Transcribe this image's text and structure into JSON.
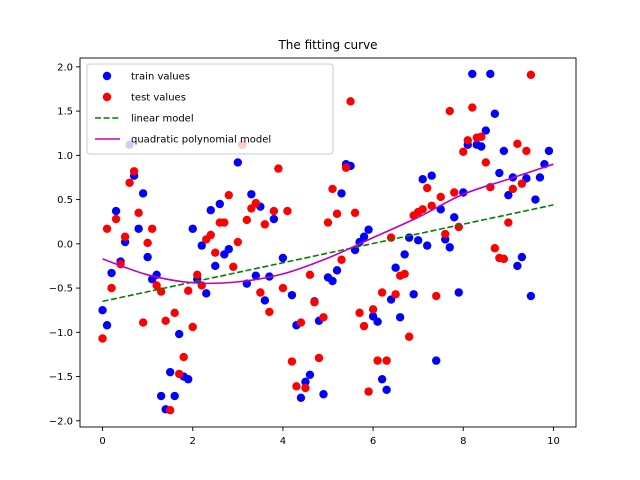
{
  "chart_data": {
    "type": "scatter",
    "title": "The fitting curve",
    "xlabel": "",
    "ylabel": "",
    "xlim": [
      -0.5,
      10.5
    ],
    "ylim": [
      -2.07,
      2.1
    ],
    "xticks": [
      0,
      2,
      4,
      6,
      8,
      10
    ],
    "yticks": [
      -2.0,
      -1.5,
      -1.0,
      -0.5,
      0.0,
      0.5,
      1.0,
      1.5,
      2.0
    ],
    "ytick_labels": [
      "−2.0",
      "−1.5",
      "−1.0",
      "−0.5",
      "0.0",
      "0.5",
      "1.0",
      "1.5",
      "2.0"
    ],
    "grid": false,
    "legend_position": "upper-left",
    "series": [
      {
        "name": "train values",
        "kind": "scatter",
        "color": "#0000ff",
        "points": [
          [
            0.0,
            -0.75
          ],
          [
            0.1,
            -0.92
          ],
          [
            0.2,
            -0.33
          ],
          [
            0.3,
            0.37
          ],
          [
            0.4,
            -0.2
          ],
          [
            0.5,
            0.02
          ],
          [
            0.6,
            1.12
          ],
          [
            0.7,
            0.77
          ],
          [
            0.8,
            0.17
          ],
          [
            0.9,
            0.57
          ],
          [
            1.0,
            -0.15
          ],
          [
            1.1,
            -0.4
          ],
          [
            1.2,
            -0.35
          ],
          [
            1.3,
            -1.72
          ],
          [
            1.4,
            -1.87
          ],
          [
            1.5,
            -1.45
          ],
          [
            1.6,
            -1.72
          ],
          [
            1.7,
            -1.02
          ],
          [
            1.8,
            -1.5
          ],
          [
            1.9,
            -1.53
          ],
          [
            2.0,
            0.17
          ],
          [
            2.1,
            -0.4
          ],
          [
            2.2,
            -0.02
          ],
          [
            2.3,
            -0.56
          ],
          [
            2.4,
            0.38
          ],
          [
            2.5,
            -0.25
          ],
          [
            2.6,
            0.45
          ],
          [
            2.7,
            -0.12
          ],
          [
            2.8,
            -0.06
          ],
          [
            3.0,
            0.92
          ],
          [
            3.1,
            1.12
          ],
          [
            3.2,
            -0.45
          ],
          [
            3.3,
            0.56
          ],
          [
            3.4,
            -0.36
          ],
          [
            3.5,
            0.42
          ],
          [
            3.6,
            -0.64
          ],
          [
            3.7,
            -0.37
          ],
          [
            3.8,
            0.28
          ],
          [
            4.0,
            -0.16
          ],
          [
            4.2,
            -0.58
          ],
          [
            4.3,
            -0.92
          ],
          [
            4.4,
            -1.74
          ],
          [
            4.5,
            -1.56
          ],
          [
            4.6,
            -1.48
          ],
          [
            4.7,
            -0.65
          ],
          [
            4.8,
            -0.87
          ],
          [
            4.9,
            -1.7
          ],
          [
            5.0,
            -0.38
          ],
          [
            5.1,
            -0.42
          ],
          [
            5.2,
            -0.3
          ],
          [
            5.3,
            0.57
          ],
          [
            5.4,
            0.9
          ],
          [
            5.5,
            0.88
          ],
          [
            5.6,
            -0.07
          ],
          [
            5.7,
            0.02
          ],
          [
            5.8,
            0.08
          ],
          [
            5.9,
            0.16
          ],
          [
            6.0,
            -0.82
          ],
          [
            6.1,
            -0.88
          ],
          [
            6.2,
            -1.53
          ],
          [
            6.3,
            -1.65
          ],
          [
            6.4,
            -0.63
          ],
          [
            6.5,
            -0.27
          ],
          [
            6.6,
            -0.83
          ],
          [
            6.7,
            -0.12
          ],
          [
            6.8,
            0.07
          ],
          [
            6.9,
            -0.57
          ],
          [
            7.0,
            0.04
          ],
          [
            7.1,
            0.73
          ],
          [
            7.2,
            -0.02
          ],
          [
            7.3,
            0.77
          ],
          [
            7.4,
            -1.32
          ],
          [
            7.5,
            0.39
          ],
          [
            7.6,
            0.05
          ],
          [
            7.7,
            -0.04
          ],
          [
            7.8,
            0.3
          ],
          [
            7.9,
            -0.55
          ],
          [
            8.0,
            0.58
          ],
          [
            8.1,
            1.12
          ],
          [
            8.2,
            1.92
          ],
          [
            8.3,
            1.12
          ],
          [
            8.4,
            1.1
          ],
          [
            8.5,
            1.28
          ],
          [
            8.6,
            1.92
          ],
          [
            8.7,
            1.47
          ],
          [
            8.8,
            0.8
          ],
          [
            8.9,
            1.05
          ],
          [
            9.0,
            0.55
          ],
          [
            9.1,
            0.75
          ],
          [
            9.2,
            -0.25
          ],
          [
            9.3,
            -0.15
          ],
          [
            9.4,
            0.74
          ],
          [
            9.5,
            -0.59
          ],
          [
            9.6,
            0.5
          ],
          [
            9.7,
            0.75
          ],
          [
            9.8,
            0.9
          ],
          [
            9.9,
            1.05
          ]
        ]
      },
      {
        "name": "test values",
        "kind": "scatter",
        "color": "#ff0000",
        "points": [
          [
            0.0,
            -1.07
          ],
          [
            0.1,
            0.17
          ],
          [
            0.2,
            -0.5
          ],
          [
            0.3,
            0.28
          ],
          [
            0.4,
            -0.23
          ],
          [
            0.5,
            0.08
          ],
          [
            0.6,
            0.69
          ],
          [
            0.7,
            0.82
          ],
          [
            0.8,
            0.35
          ],
          [
            0.9,
            -0.89
          ],
          [
            1.0,
            0.01
          ],
          [
            1.1,
            0.17
          ],
          [
            1.2,
            -0.47
          ],
          [
            1.3,
            -0.54
          ],
          [
            1.4,
            -0.87
          ],
          [
            1.5,
            -1.88
          ],
          [
            1.6,
            -0.78
          ],
          [
            1.7,
            -1.47
          ],
          [
            1.8,
            -1.28
          ],
          [
            1.9,
            -0.53
          ],
          [
            2.0,
            -0.94
          ],
          [
            2.1,
            -0.35
          ],
          [
            2.2,
            -0.47
          ],
          [
            2.3,
            0.05
          ],
          [
            2.4,
            0.1
          ],
          [
            2.5,
            -0.1
          ],
          [
            2.6,
            0.24
          ],
          [
            2.7,
            0.24
          ],
          [
            2.8,
            0.55
          ],
          [
            2.9,
            -0.26
          ],
          [
            3.0,
            0.02
          ],
          [
            3.1,
            1.12
          ],
          [
            3.2,
            0.27
          ],
          [
            3.3,
            0.4
          ],
          [
            3.4,
            0.46
          ],
          [
            3.5,
            -0.55
          ],
          [
            3.6,
            0.22
          ],
          [
            3.7,
            -0.77
          ],
          [
            3.8,
            0.37
          ],
          [
            3.9,
            0.85
          ],
          [
            4.0,
            -0.5
          ],
          [
            4.1,
            0.37
          ],
          [
            4.2,
            -1.33
          ],
          [
            4.3,
            -1.61
          ],
          [
            4.4,
            -0.89
          ],
          [
            4.5,
            -1.63
          ],
          [
            4.6,
            -0.35
          ],
          [
            4.7,
            -0.66
          ],
          [
            4.8,
            -1.29
          ],
          [
            4.9,
            -0.83
          ],
          [
            5.0,
            0.24
          ],
          [
            5.1,
            0.62
          ],
          [
            5.2,
            0.34
          ],
          [
            5.3,
            -0.18
          ],
          [
            5.4,
            0.86
          ],
          [
            5.5,
            1.61
          ],
          [
            5.6,
            0.35
          ],
          [
            5.7,
            -0.78
          ],
          [
            5.8,
            -0.93
          ],
          [
            5.9,
            -1.67
          ],
          [
            6.0,
            -0.74
          ],
          [
            6.1,
            -1.32
          ],
          [
            6.2,
            -0.55
          ],
          [
            6.3,
            -1.32
          ],
          [
            6.4,
            0.07
          ],
          [
            6.5,
            -0.57
          ],
          [
            6.6,
            -0.36
          ],
          [
            6.7,
            -0.34
          ],
          [
            6.8,
            -1.05
          ],
          [
            6.9,
            0.32
          ],
          [
            7.0,
            0.36
          ],
          [
            7.1,
            0.39
          ],
          [
            7.2,
            0.63
          ],
          [
            7.3,
            0.43
          ],
          [
            7.4,
            -0.59
          ],
          [
            7.5,
            0.53
          ],
          [
            7.6,
            0.11
          ],
          [
            7.7,
            1.5
          ],
          [
            7.8,
            0.58
          ],
          [
            7.9,
            0.19
          ],
          [
            8.0,
            1.04
          ],
          [
            8.1,
            1.17
          ],
          [
            8.2,
            1.54
          ],
          [
            8.3,
            1.2
          ],
          [
            8.4,
            1.21
          ],
          [
            8.5,
            0.92
          ],
          [
            8.6,
            0.64
          ],
          [
            8.7,
            -0.05
          ],
          [
            8.8,
            -0.16
          ],
          [
            8.9,
            -0.17
          ],
          [
            9.0,
            0.24
          ],
          [
            9.1,
            0.62
          ],
          [
            9.2,
            1.13
          ],
          [
            9.3,
            0.68
          ],
          [
            9.4,
            1.05
          ],
          [
            9.5,
            1.91
          ]
        ]
      },
      {
        "name": "linear model",
        "kind": "line",
        "color": "#008000",
        "dash": "dashed",
        "x": [
          0,
          10
        ],
        "y": [
          -0.65,
          0.44
        ]
      },
      {
        "name": "quadratic polynomial model",
        "kind": "line",
        "color": "#bf00bf",
        "dash": "solid",
        "x": [
          0,
          1,
          2,
          3,
          4,
          5,
          6,
          7,
          8,
          9,
          10
        ],
        "y": [
          -0.17,
          -0.35,
          -0.44,
          -0.43,
          -0.34,
          -0.16,
          0.07,
          0.3,
          0.56,
          0.73,
          0.9
        ]
      }
    ]
  }
}
